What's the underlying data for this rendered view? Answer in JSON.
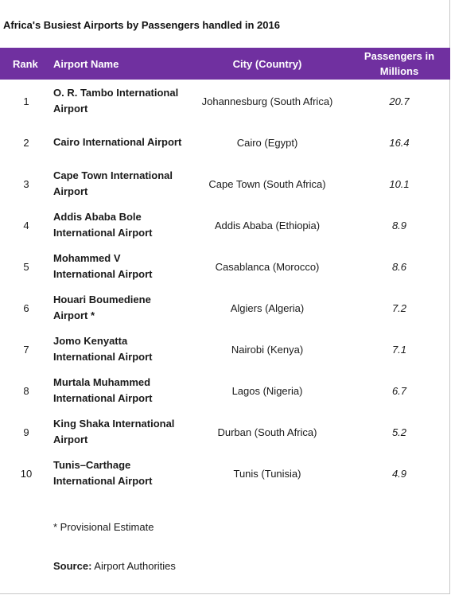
{
  "title": "Africa's Busiest Airports by Passengers handled in 2016",
  "header": {
    "rank": "Rank",
    "airport_name": "Airport Name",
    "city_country": "City (Country)",
    "passengers_line1": "Passengers in",
    "passengers_line2": "Millions"
  },
  "colors": {
    "header_bg": "#7030a0",
    "header_text": "#ffffff"
  },
  "rows": [
    {
      "rank": "1",
      "name_line1": "O. R. Tambo International",
      "name_line2": "Airport",
      "city": "Johannesburg (South Africa)",
      "passengers": "20.7"
    },
    {
      "rank": "2",
      "name_line1": "Cairo International Airport",
      "name_line2": "",
      "city": "Cairo (Egypt)",
      "passengers": "16.4"
    },
    {
      "rank": "3",
      "name_line1": "Cape Town International",
      "name_line2": "Airport",
      "city": "Cape Town (South Africa)",
      "passengers": "10.1"
    },
    {
      "rank": "4",
      "name_line1": "Addis Ababa Bole",
      "name_line2": "International Airport",
      "city": "Addis Ababa (Ethiopia)",
      "passengers": "8.9"
    },
    {
      "rank": "5",
      "name_line1": "Mohammed V",
      "name_line2": "International Airport",
      "city": "Casablanca (Morocco)",
      "passengers": "8.6"
    },
    {
      "rank": "6",
      "name_line1": "Houari Boumediene",
      "name_line2": "Airport *",
      "city": "Algiers (Algeria)",
      "passengers": "7.2"
    },
    {
      "rank": "7",
      "name_line1": "Jomo Kenyatta",
      "name_line2": "International Airport",
      "city": "Nairobi (Kenya)",
      "passengers": "7.1"
    },
    {
      "rank": "8",
      "name_line1": "Murtala Muhammed",
      "name_line2": "International Airport",
      "city": "Lagos (Nigeria)",
      "passengers": "6.7"
    },
    {
      "rank": "9",
      "name_line1": "King Shaka International",
      "name_line2": "Airport",
      "city": "Durban (South Africa)",
      "passengers": "5.2"
    },
    {
      "rank": "10",
      "name_line1": "Tunis–Carthage",
      "name_line2": "International Airport",
      "city": "Tunis (Tunisia)",
      "passengers": "4.9"
    }
  ],
  "footnote": "* Provisional Estimate",
  "source": {
    "label": "Source:",
    "value": " Airport Authorities"
  }
}
